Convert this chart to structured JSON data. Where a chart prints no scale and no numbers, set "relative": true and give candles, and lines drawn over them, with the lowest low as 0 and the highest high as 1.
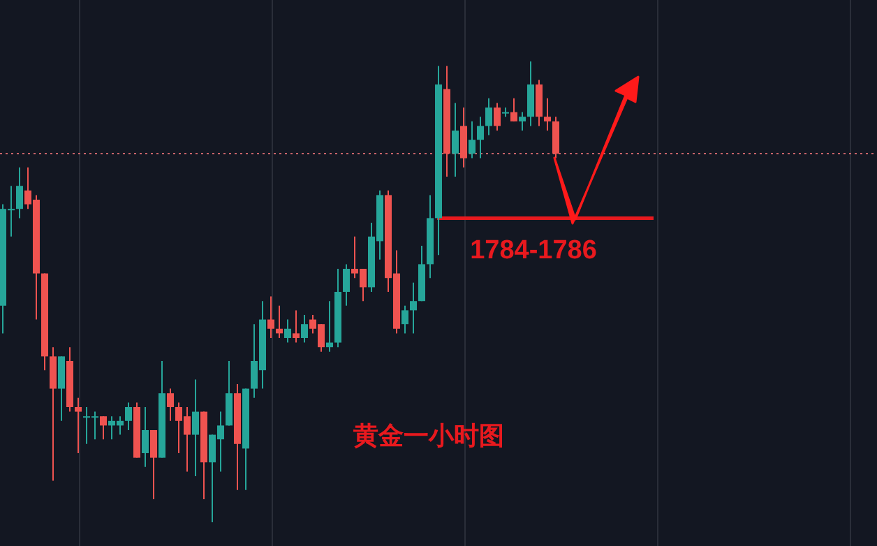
{
  "chart_data": {
    "type": "candlestick",
    "relative": true,
    "categories": [
      null,
      null,
      null,
      null,
      null,
      null,
      null,
      null,
      null,
      null,
      null,
      null,
      null,
      null,
      null,
      null,
      null,
      null,
      null,
      null,
      null,
      null,
      null,
      null,
      null,
      null,
      null,
      null,
      null,
      null,
      null,
      null,
      null,
      null,
      null,
      null,
      null,
      null,
      null,
      null,
      null,
      null,
      null,
      null,
      null,
      null,
      null,
      null,
      null,
      null,
      null,
      null,
      null,
      null,
      null,
      null,
      null,
      null,
      null,
      null,
      null,
      null,
      null,
      null,
      null,
      null,
      null
    ],
    "ohlc": [
      [
        0.47,
        0.69,
        0.41,
        0.68
      ],
      [
        0.68,
        0.73,
        0.62,
        0.68
      ],
      [
        0.68,
        0.77,
        0.66,
        0.73
      ],
      [
        0.72,
        0.77,
        0.68,
        0.69
      ],
      [
        0.7,
        0.71,
        0.44,
        0.54
      ],
      [
        0.54,
        0.54,
        0.33,
        0.36
      ],
      [
        0.36,
        0.38,
        0.09,
        0.29
      ],
      [
        0.29,
        0.36,
        0.22,
        0.36
      ],
      [
        0.35,
        0.38,
        0.24,
        0.25
      ],
      [
        0.25,
        0.27,
        0.15,
        0.24
      ],
      [
        0.23,
        0.25,
        0.17,
        0.23
      ],
      [
        0.23,
        0.24,
        0.18,
        0.23
      ],
      [
        0.23,
        0.23,
        0.18,
        0.21
      ],
      [
        0.21,
        0.23,
        0.18,
        0.22
      ],
      [
        0.21,
        0.23,
        0.19,
        0.22
      ],
      [
        0.22,
        0.26,
        0.2,
        0.25
      ],
      [
        0.25,
        0.26,
        0.14,
        0.14
      ],
      [
        0.15,
        0.25,
        0.12,
        0.2
      ],
      [
        0.2,
        0.2,
        0.05,
        0.14
      ],
      [
        0.14,
        0.35,
        0.14,
        0.28
      ],
      [
        0.28,
        0.29,
        0.22,
        0.25
      ],
      [
        0.25,
        0.26,
        0.15,
        0.22
      ],
      [
        0.23,
        0.25,
        0.11,
        0.19
      ],
      [
        0.19,
        0.31,
        0.1,
        0.24
      ],
      [
        0.24,
        0.24,
        0.05,
        0.13
      ],
      [
        0.13,
        0.19,
        0,
        0.19
      ],
      [
        0.18,
        0.24,
        0.11,
        0.21
      ],
      [
        0.21,
        0.35,
        0.21,
        0.28
      ],
      [
        0.28,
        0.3,
        0.07,
        0.17
      ],
      [
        0.16,
        0.29,
        0.07,
        0.29
      ],
      [
        0.29,
        0.43,
        0.27,
        0.35
      ],
      [
        0.33,
        0.48,
        0.29,
        0.44
      ],
      [
        0.44,
        0.49,
        0.4,
        0.42
      ],
      [
        0.42,
        0.47,
        0.4,
        0.41
      ],
      [
        0.4,
        0.44,
        0.39,
        0.42
      ],
      [
        0.41,
        0.46,
        0.39,
        0.4
      ],
      [
        0.4,
        0.45,
        0.39,
        0.43
      ],
      [
        0.44,
        0.45,
        0.41,
        0.42
      ],
      [
        0.43,
        0.43,
        0.37,
        0.38
      ],
      [
        0.38,
        0.48,
        0.37,
        0.39
      ],
      [
        0.39,
        0.55,
        0.38,
        0.5
      ],
      [
        0.5,
        0.56,
        0.47,
        0.55
      ],
      [
        0.55,
        0.62,
        0.53,
        0.54
      ],
      [
        0.55,
        0.55,
        0.48,
        0.51
      ],
      [
        0.51,
        0.65,
        0.5,
        0.62
      ],
      [
        0.61,
        0.72,
        0.57,
        0.71
      ],
      [
        0.71,
        0.72,
        0.5,
        0.53
      ],
      [
        0.54,
        0.59,
        0.41,
        0.42
      ],
      [
        0.43,
        0.47,
        0.41,
        0.46
      ],
      [
        0.46,
        0.52,
        0.41,
        0.48
      ],
      [
        0.48,
        0.6,
        0.48,
        0.56
      ],
      [
        0.56,
        0.71,
        0.53,
        0.66
      ],
      [
        0.66,
        0.99,
        0.58,
        0.95
      ],
      [
        0.94,
        0.99,
        0.75,
        0.8
      ],
      [
        0.8,
        0.91,
        0.75,
        0.85
      ],
      [
        0.86,
        0.9,
        0.77,
        0.79
      ],
      [
        0.8,
        0.87,
        0.79,
        0.83
      ],
      [
        0.83,
        0.88,
        0.79,
        0.86
      ],
      [
        0.86,
        0.92,
        0.84,
        0.9
      ],
      [
        0.9,
        0.91,
        0.85,
        0.86
      ],
      [
        0.89,
        0.9,
        0.88,
        0.89
      ],
      [
        0.89,
        0.92,
        0.87,
        0.87
      ],
      [
        0.87,
        0.89,
        0.85,
        0.88
      ],
      [
        0.88,
        1,
        0.86,
        0.95
      ],
      [
        0.95,
        0.96,
        0.86,
        0.88
      ],
      [
        0.88,
        0.92,
        0.85,
        0.87
      ],
      [
        0.87,
        0.88,
        0.79,
        0.8
      ]
    ],
    "grid": "x",
    "ref_lines": [
      {
        "axis": "y",
        "value": 0.66,
        "color": "#e8191e",
        "line_style": "solid"
      },
      {
        "axis": "y",
        "value": 0.8,
        "color": "#c8636a",
        "line_style": "dotted"
      }
    ],
    "annotations": [
      "1784-1786",
      "黄金一小时图"
    ]
  }
}
